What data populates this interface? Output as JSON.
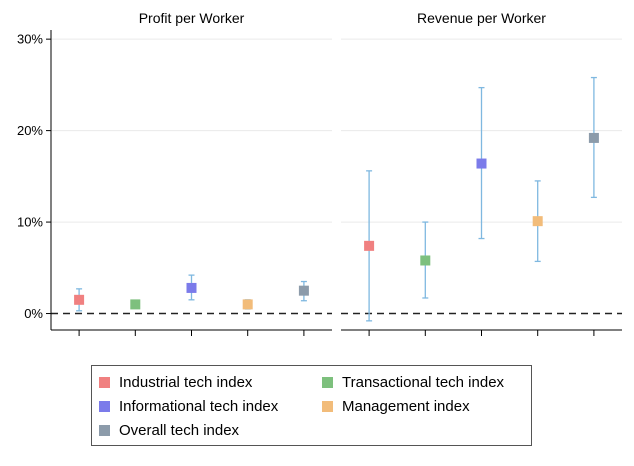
{
  "chart_data": {
    "type": "scatter",
    "ylabel": "",
    "ylim": [
      -0.018,
      0.31
    ],
    "yticks": [
      {
        "value": 0,
        "label": "0%"
      },
      {
        "value": 0.1,
        "label": "10%"
      },
      {
        "value": 0.2,
        "label": "20%"
      },
      {
        "value": 0.3,
        "label": "30%"
      }
    ],
    "grid": true,
    "reference_line": {
      "y": 0,
      "style": "dashed"
    },
    "legend_position": "bottom",
    "panels": [
      {
        "title": "Profit per Worker",
        "points": [
          {
            "series": "Industrial tech index",
            "y": 0.015,
            "lo": 0.003,
            "hi": 0.027
          },
          {
            "series": "Transactional tech index",
            "y": 0.01,
            "lo": 0.006,
            "hi": 0.014
          },
          {
            "series": "Informational tech index",
            "y": 0.028,
            "lo": 0.015,
            "hi": 0.042
          },
          {
            "series": "Management index",
            "y": 0.01,
            "lo": 0.005,
            "hi": 0.015
          },
          {
            "series": "Overall tech index",
            "y": 0.025,
            "lo": 0.014,
            "hi": 0.035
          }
        ]
      },
      {
        "title": "Revenue per Worker",
        "points": [
          {
            "series": "Industrial tech index",
            "y": 0.074,
            "lo": -0.008,
            "hi": 0.156
          },
          {
            "series": "Transactional tech index",
            "y": 0.058,
            "lo": 0.017,
            "hi": 0.1
          },
          {
            "series": "Informational tech index",
            "y": 0.164,
            "lo": 0.082,
            "hi": 0.247
          },
          {
            "series": "Management index",
            "y": 0.101,
            "lo": 0.057,
            "hi": 0.145
          },
          {
            "series": "Overall tech index",
            "y": 0.192,
            "lo": 0.127,
            "hi": 0.258
          }
        ]
      }
    ],
    "series": [
      {
        "name": "Industrial tech index",
        "color": "#f08080"
      },
      {
        "name": "Transactional tech index",
        "color": "#7dc07d"
      },
      {
        "name": "Informational tech index",
        "color": "#7b7bea"
      },
      {
        "name": "Management index",
        "color": "#f2bc7a"
      },
      {
        "name": "Overall tech index",
        "color": "#8c9baa"
      }
    ],
    "errorbar_color": "#7fb8e0"
  }
}
